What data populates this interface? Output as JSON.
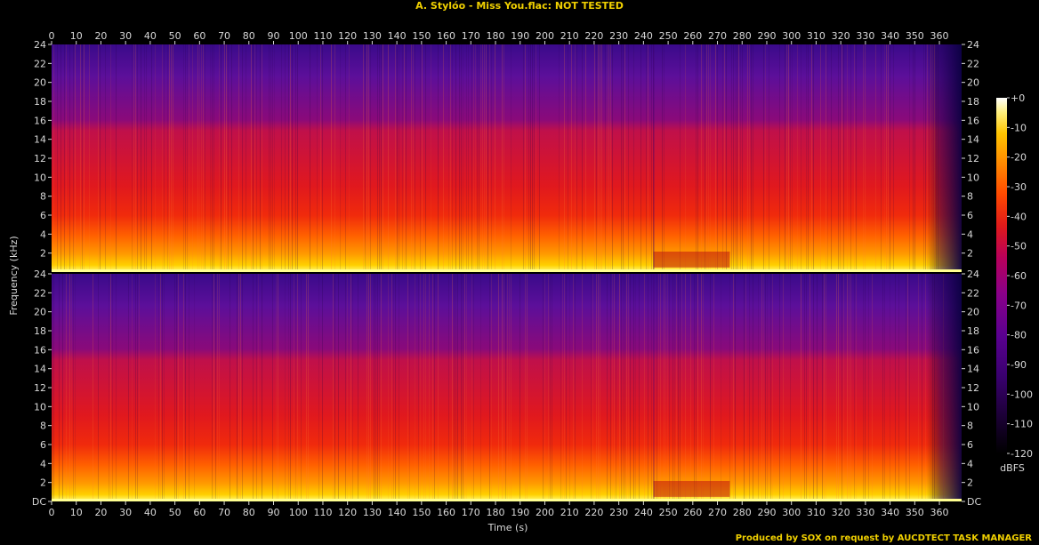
{
  "title": "A. Stylóo - Miss You.flac: NOT TESTED",
  "footer": "Produced by SOX on request by AUCDTECT TASK MANAGER",
  "chart_data": {
    "type": "heatmap",
    "title": "A. Stylóo - Miss You.flac: NOT TESTED",
    "xlabel": "Time (s)",
    "ylabel": "Frequency (kHz)",
    "x_ticks": [
      0,
      10,
      20,
      30,
      40,
      50,
      60,
      70,
      80,
      90,
      100,
      110,
      120,
      130,
      140,
      150,
      160,
      170,
      180,
      190,
      200,
      210,
      220,
      230,
      240,
      250,
      260,
      270,
      280,
      290,
      300,
      310,
      320,
      330,
      340,
      350,
      360
    ],
    "xlim": [
      0,
      369
    ],
    "y_ticks": [
      "DC",
      "2",
      "4",
      "6",
      "8",
      "10",
      "12",
      "14",
      "16",
      "18",
      "20",
      "22",
      "24"
    ],
    "ylim_khz": [
      0,
      24
    ],
    "channels": 2,
    "colorbar": {
      "label": "dBFS",
      "ticks": [
        "+0",
        "-10",
        "-20",
        "-30",
        "-40",
        "-50",
        "-60",
        "-70",
        "-80",
        "-90",
        "-100",
        "-110",
        "-120"
      ],
      "range_db": [
        -120,
        0
      ],
      "colors": [
        "#000000",
        "#1a0033",
        "#3a0070",
        "#5a0090",
        "#8a0088",
        "#b8005a",
        "#e01a1a",
        "#ff4a00",
        "#ff8c00",
        "#ffc400",
        "#fff080",
        "#ffffff"
      ]
    },
    "bands": [
      {
        "from_khz": 16,
        "to_khz": 24,
        "level_db": -95
      },
      {
        "from_khz": 14.5,
        "to_khz": 16,
        "level_db": -80
      },
      {
        "from_khz": 6,
        "to_khz": 14.5,
        "level_db": -60
      },
      {
        "from_khz": 2,
        "to_khz": 6,
        "level_db": -45
      },
      {
        "from_khz": 0,
        "to_khz": 2,
        "level_db": -25
      }
    ],
    "events": [
      {
        "time_s": 244,
        "note": "energy drop in 0-2 kHz until 275 s"
      },
      {
        "time_s": 362,
        "note": "fade out"
      }
    ]
  }
}
